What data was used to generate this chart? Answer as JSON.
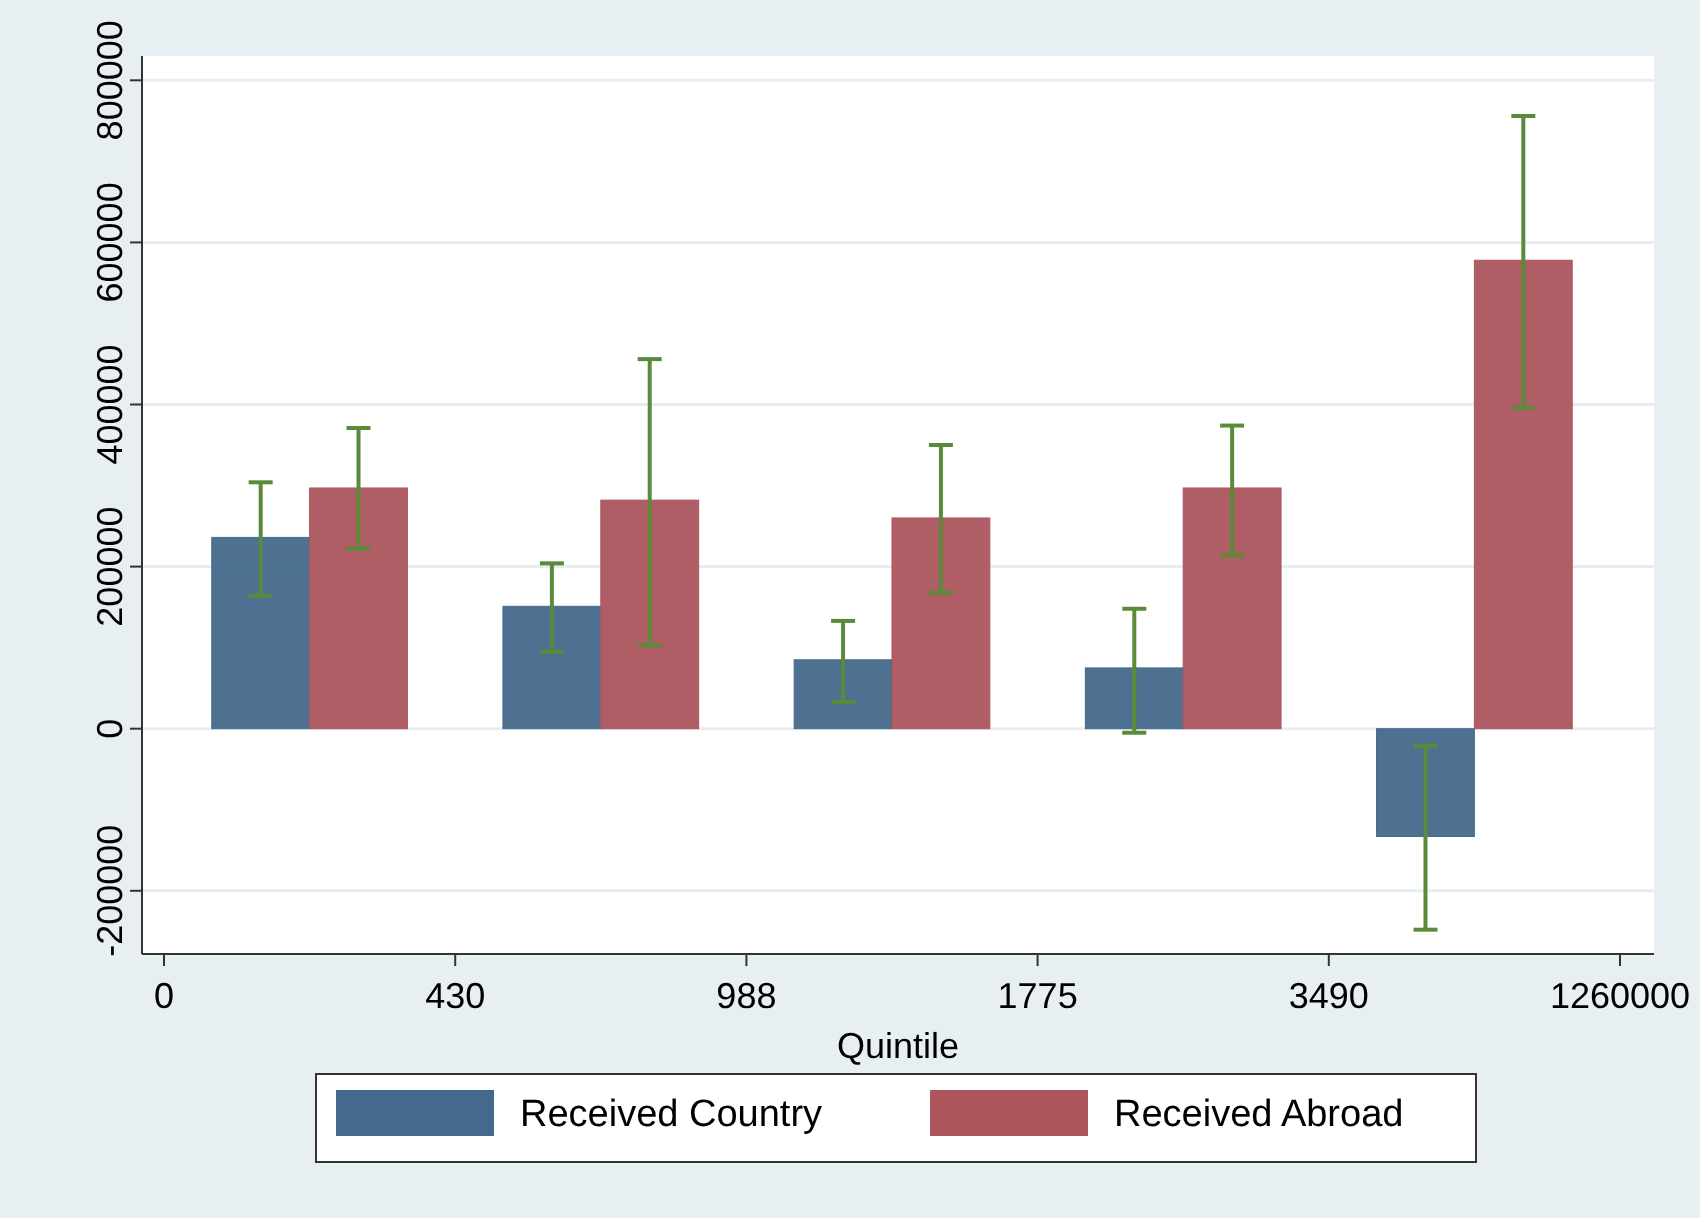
{
  "chart_data": {
    "type": "bar",
    "xlabel": "Quintile",
    "categories": [
      "0",
      null,
      "430",
      null,
      "988",
      null,
      "1775",
      null,
      "3490",
      null,
      "1260000"
    ],
    "ylim": [
      -278000,
      830000
    ],
    "yticks": [
      -200000,
      0,
      200000,
      400000,
      600000,
      800000
    ],
    "series": [
      {
        "name": "Received Country",
        "color": "#45698c",
        "values": [
          null,
          236000,
          null,
          151000,
          null,
          85000,
          null,
          75000,
          null,
          -133000,
          null
        ],
        "errors": [
          null,
          [
            164000,
            304000
          ],
          null,
          [
            95000,
            204000
          ],
          null,
          [
            33000,
            133000
          ],
          null,
          [
            -5000,
            148000
          ],
          null,
          [
            -248000,
            -21000
          ],
          null
        ]
      },
      {
        "name": "Received Abroad",
        "color": "#ac555d",
        "values": [
          null,
          297000,
          null,
          282000,
          null,
          260000,
          null,
          297000,
          null,
          578000,
          null
        ],
        "errors": [
          null,
          [
            222000,
            371000
          ],
          null,
          [
            103000,
            456000
          ],
          null,
          [
            168000,
            350000
          ],
          null,
          [
            214000,
            374000
          ],
          null,
          [
            396000,
            756000
          ],
          null
        ]
      }
    ],
    "grid": "y",
    "legend": "bottom"
  }
}
